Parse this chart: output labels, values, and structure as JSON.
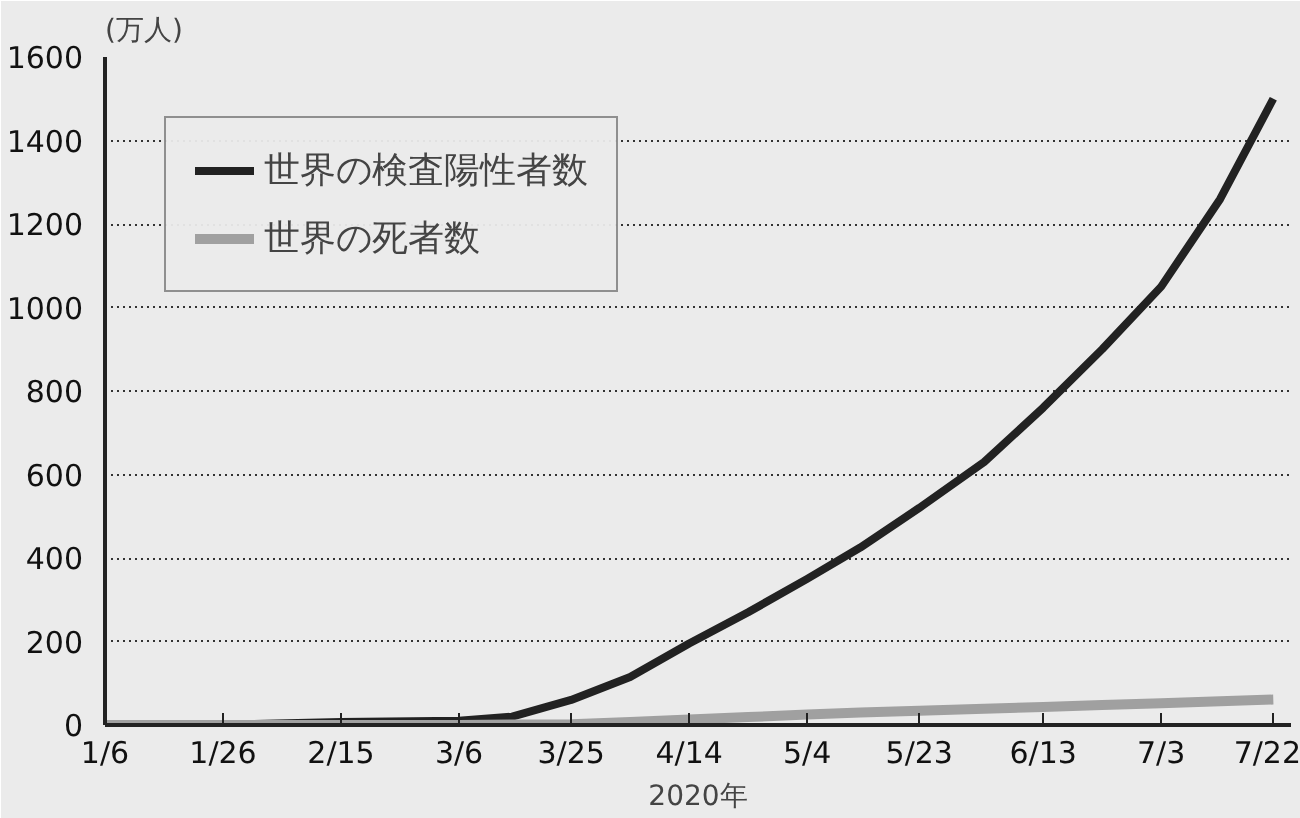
{
  "chart_data": {
    "type": "line",
    "ylabel": "(万人)",
    "xlabel": "2020年",
    "x": [
      "2020-01-06",
      "2020-01-26",
      "2020-02-15",
      "2020-03-06",
      "2020-03-15",
      "2020-03-25",
      "2020-04-04",
      "2020-04-14",
      "2020-04-24",
      "2020-05-04",
      "2020-05-13",
      "2020-05-23",
      "2020-06-03",
      "2020-06-13",
      "2020-06-23",
      "2020-07-03",
      "2020-07-13",
      "2020-07-22"
    ],
    "series": [
      {
        "name": "世界の検査陽性者数",
        "color": "#222222",
        "values": [
          0,
          1,
          7,
          10,
          20,
          60,
          115,
          195,
          270,
          350,
          425,
          520,
          630,
          760,
          900,
          1050,
          1260,
          1500
        ]
      },
      {
        "name": "世界の死者数",
        "color": "#a0a0a0",
        "values": [
          0,
          0,
          0,
          0,
          1,
          2,
          7,
          13,
          19,
          25,
          30,
          34,
          39,
          43,
          48,
          52,
          57,
          61
        ]
      }
    ],
    "xlim": [
      "2020-01-06",
      "2020-07-25"
    ],
    "xticks": [
      {
        "value": "2020-01-06",
        "label": "1/6"
      },
      {
        "value": "2020-01-26",
        "label": "1/26"
      },
      {
        "value": "2020-02-15",
        "label": "2/15"
      },
      {
        "value": "2020-03-06",
        "label": "3/6"
      },
      {
        "value": "2020-03-25",
        "label": "3/25"
      },
      {
        "value": "2020-04-14",
        "label": "4/14"
      },
      {
        "value": "2020-05-04",
        "label": "5/4"
      },
      {
        "value": "2020-05-23",
        "label": "5/23"
      },
      {
        "value": "2020-06-13",
        "label": "6/13"
      },
      {
        "value": "2020-07-03",
        "label": "7/3"
      },
      {
        "value": "2020-07-22",
        "label": "7/22"
      }
    ],
    "ylim": [
      0,
      1600
    ],
    "yticks": [
      0,
      200,
      400,
      600,
      800,
      1000,
      1200,
      1400,
      1600
    ],
    "grid": "y",
    "legend": "top left",
    "marker": "none",
    "line_style": "solid"
  }
}
